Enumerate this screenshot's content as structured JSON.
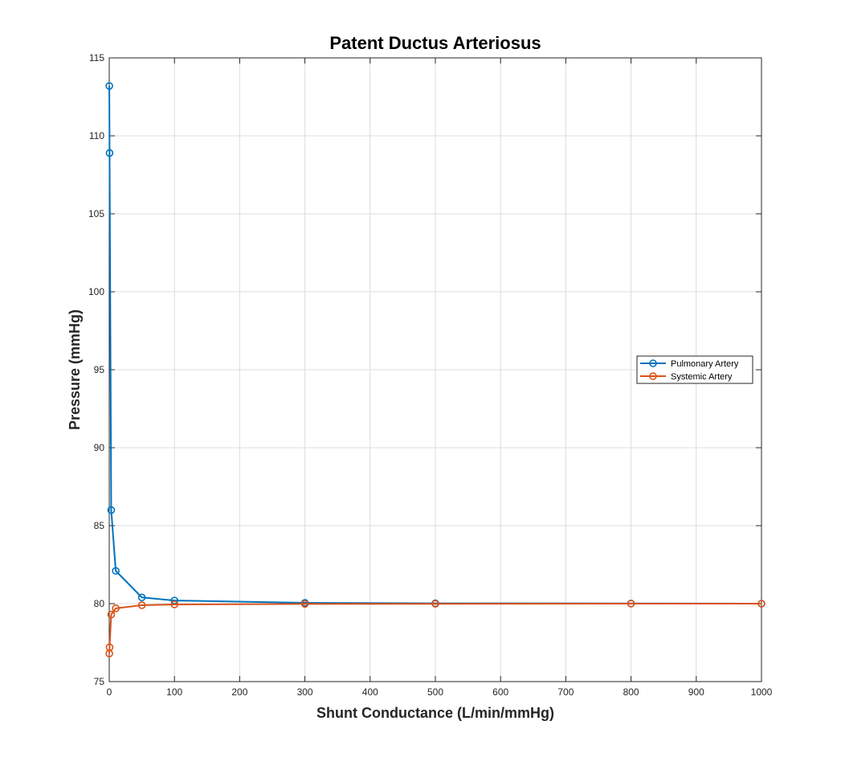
{
  "chart_data": {
    "type": "line",
    "title": "Patent Ductus Arteriosus",
    "xlabel": "Shunt Conductance (L/min/mmHg)",
    "ylabel": "Pressure (mmHg)",
    "xlim": [
      0,
      1000
    ],
    "ylim": [
      75,
      115
    ],
    "xticks": [
      0,
      100,
      200,
      300,
      400,
      500,
      600,
      700,
      800,
      900,
      1000
    ],
    "yticks": [
      75,
      80,
      85,
      90,
      95,
      100,
      105,
      110,
      115
    ],
    "grid": true,
    "legend_position": "right",
    "series": [
      {
        "name": "Pulmonary Artery",
        "color": "#0072BD",
        "marker": "circle",
        "x": [
          0.1,
          0.5,
          3,
          10,
          50,
          100,
          300,
          500,
          800,
          1000
        ],
        "y": [
          113.2,
          108.9,
          86.0,
          82.1,
          80.4,
          80.2,
          80.05,
          80.02,
          80.01,
          80.0
        ]
      },
      {
        "name": "Systemic Artery",
        "color": "#D95319",
        "marker": "circle",
        "x": [
          0.1,
          0.5,
          3,
          10,
          50,
          100,
          300,
          500,
          800,
          1000
        ],
        "y": [
          76.8,
          77.2,
          79.3,
          79.7,
          79.9,
          79.95,
          79.98,
          79.99,
          80.0,
          80.0
        ]
      }
    ]
  }
}
